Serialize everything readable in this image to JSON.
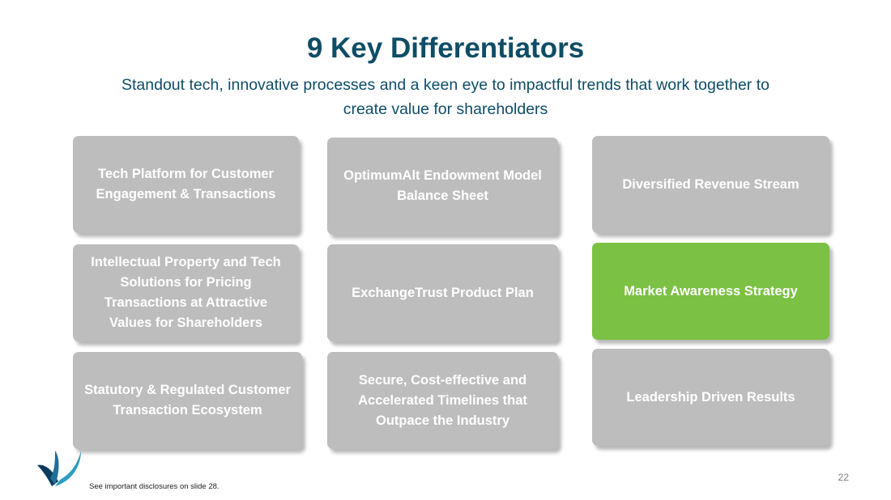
{
  "slide": {
    "title": "9 Key Differentiators",
    "subtitle": "Standout tech, innovative processes and a keen eye to impactful trends that work together to create value for shareholders"
  },
  "cards": [
    {
      "label": "Tech Platform for Customer Engagement & Transactions",
      "highlighted": false
    },
    {
      "label": "OptimumAlt Endowment Model Balance Sheet",
      "highlighted": false
    },
    {
      "label": "Diversified Revenue Stream",
      "highlighted": false
    },
    {
      "label": "Intellectual Property and Tech Solutions for Pricing Transactions at Attractive Values for Shareholders",
      "highlighted": false
    },
    {
      "label": "ExchangeTrust Product Plan",
      "highlighted": false
    },
    {
      "label": "Market Awareness Strategy",
      "highlighted": true
    },
    {
      "label": "Statutory & Regulated Customer Transaction Ecosystem",
      "highlighted": false
    },
    {
      "label": "Secure, Cost-effective and Accelerated Timelines that Outpace the Industry",
      "highlighted": false
    },
    {
      "label": "Leadership Driven Results",
      "highlighted": false
    }
  ],
  "footer": {
    "disclosure": "See important disclosures on slide 28.",
    "page_number": "22"
  },
  "colors": {
    "title": "#0e4d66",
    "card_default": "#bdbdbd",
    "card_highlight": "#7bc143",
    "logo_dark": "#0b3b5c",
    "logo_light": "#2c9cc4"
  }
}
